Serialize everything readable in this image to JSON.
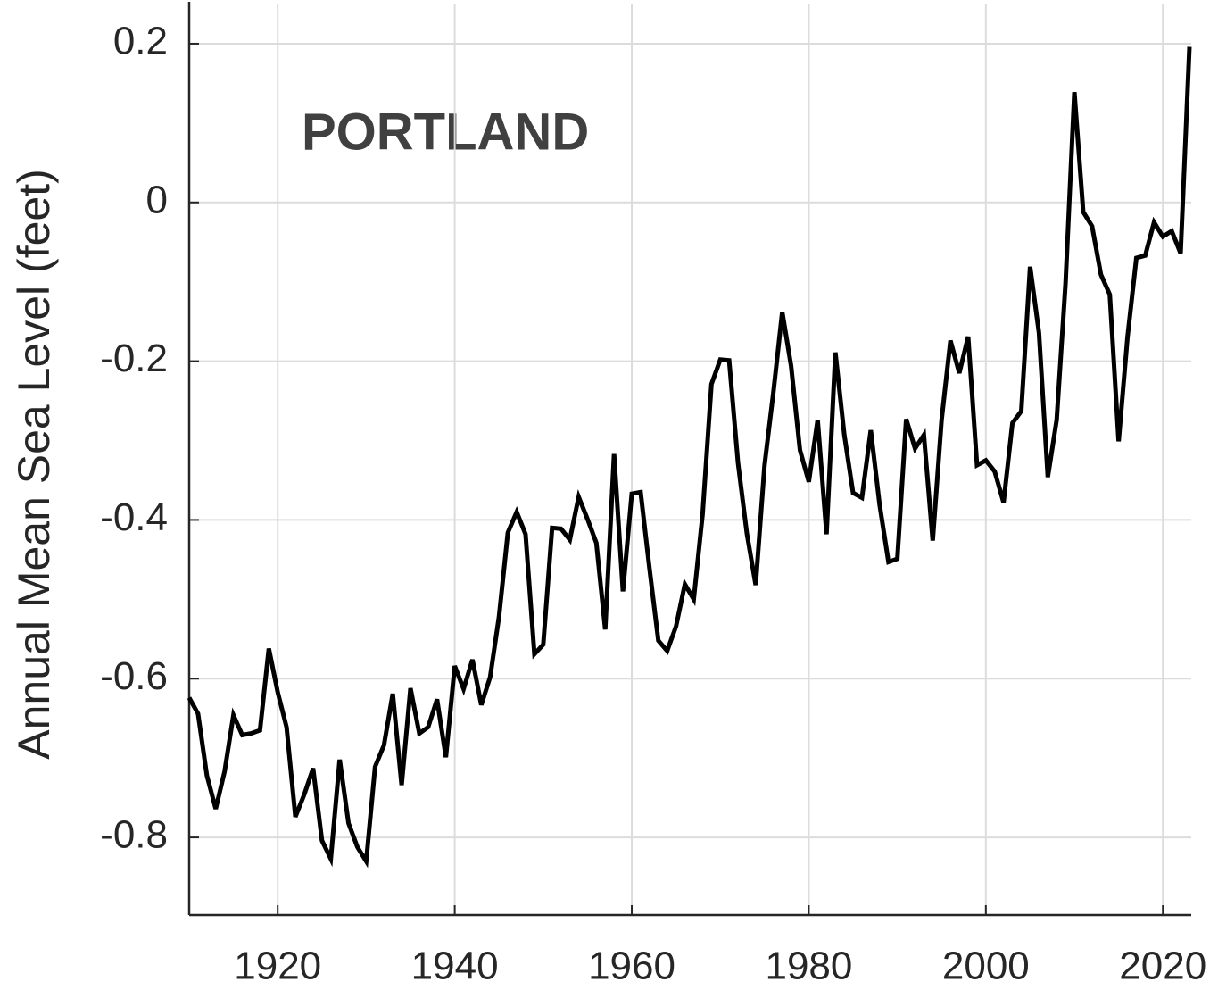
{
  "chart_data": {
    "type": "line",
    "title": "PORTLAND",
    "ylabel": "Annual Mean Sea Level (feet)",
    "x": [
      1910,
      1911,
      1912,
      1913,
      1914,
      1915,
      1916,
      1917,
      1918,
      1919,
      1920,
      1921,
      1922,
      1923,
      1924,
      1925,
      1926,
      1927,
      1928,
      1929,
      1930,
      1931,
      1932,
      1933,
      1934,
      1935,
      1936,
      1937,
      1938,
      1939,
      1940,
      1941,
      1942,
      1943,
      1944,
      1945,
      1946,
      1947,
      1948,
      1949,
      1950,
      1951,
      1952,
      1953,
      1954,
      1955,
      1956,
      1957,
      1958,
      1959,
      1960,
      1961,
      1962,
      1963,
      1964,
      1965,
      1966,
      1967,
      1968,
      1969,
      1970,
      1971,
      1972,
      1973,
      1974,
      1975,
      1976,
      1977,
      1978,
      1979,
      1980,
      1981,
      1982,
      1983,
      1984,
      1985,
      1986,
      1987,
      1988,
      1989,
      1990,
      1991,
      1992,
      1993,
      1994,
      1995,
      1996,
      1997,
      1998,
      1999,
      2000,
      2001,
      2002,
      2003,
      2004,
      2005,
      2006,
      2007,
      2008,
      2009,
      2010,
      2011,
      2012,
      2013,
      2014,
      2015,
      2016,
      2017,
      2018,
      2019,
      2020,
      2021,
      2022,
      2023
    ],
    "values": [
      -0.624,
      -0.644,
      -0.722,
      -0.764,
      -0.717,
      -0.646,
      -0.671,
      -0.669,
      -0.665,
      -0.562,
      -0.617,
      -0.661,
      -0.774,
      -0.746,
      -0.713,
      -0.804,
      -0.827,
      -0.702,
      -0.782,
      -0.812,
      -0.83,
      -0.711,
      -0.684,
      -0.619,
      -0.734,
      -0.612,
      -0.669,
      -0.661,
      -0.626,
      -0.699,
      -0.584,
      -0.613,
      -0.576,
      -0.633,
      -0.598,
      -0.522,
      -0.416,
      -0.39,
      -0.418,
      -0.569,
      -0.557,
      -0.41,
      -0.411,
      -0.425,
      -0.371,
      -0.399,
      -0.429,
      -0.538,
      -0.317,
      -0.49,
      -0.367,
      -0.365,
      -0.461,
      -0.552,
      -0.565,
      -0.534,
      -0.481,
      -0.5,
      -0.393,
      -0.229,
      -0.198,
      -0.199,
      -0.328,
      -0.417,
      -0.482,
      -0.331,
      -0.239,
      -0.138,
      -0.206,
      -0.312,
      -0.352,
      -0.274,
      -0.418,
      -0.189,
      -0.292,
      -0.366,
      -0.372,
      -0.287,
      -0.381,
      -0.453,
      -0.449,
      -0.273,
      -0.31,
      -0.293,
      -0.426,
      -0.274,
      -0.174,
      -0.215,
      -0.169,
      -0.331,
      -0.325,
      -0.339,
      -0.378,
      -0.278,
      -0.263,
      -0.081,
      -0.164,
      -0.346,
      -0.274,
      -0.102,
      0.139,
      -0.012,
      -0.03,
      -0.091,
      -0.116,
      -0.301,
      -0.17,
      -0.07,
      -0.067,
      -0.025,
      -0.043,
      -0.036,
      -0.064,
      0.196
    ],
    "color": "#000000",
    "xlim": [
      1910,
      2023
    ],
    "xticks": [
      1920,
      1940,
      1960,
      1980,
      2000,
      2020
    ],
    "ylim": [
      -0.9,
      0.25
    ],
    "yticks": [
      -0.8,
      -0.6,
      -0.4,
      -0.2,
      0,
      0.2
    ],
    "grid": true
  }
}
